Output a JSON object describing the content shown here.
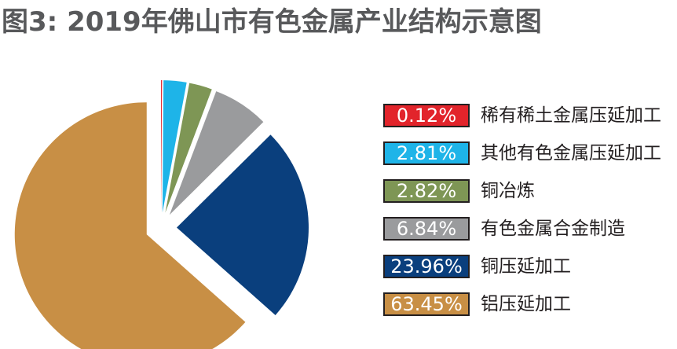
{
  "title": "图3: 2019年佛山市有色金属产业结构示意图",
  "chart_data": {
    "type": "pie",
    "title": "图3: 2019年佛山市有色金属产业结构示意图",
    "legend_position": "right",
    "slices": [
      {
        "label": "稀有稀土金属压延加工",
        "value": 0.12,
        "display": "0.12%",
        "color": "#e2242b"
      },
      {
        "label": "其他有色金属压延加工",
        "value": 2.81,
        "display": "2.81%",
        "color": "#1eb4e8"
      },
      {
        "label": "铜冶炼",
        "value": 2.82,
        "display": "2.82%",
        "color": "#7e9655"
      },
      {
        "label": "有色金属合金制造",
        "value": 6.84,
        "display": "6.84%",
        "color": "#9a9b9d"
      },
      {
        "label": "铜压延加工",
        "value": 23.96,
        "display": "23.96%",
        "color": "#0a3f7d"
      },
      {
        "label": "铝压延加工",
        "value": 63.45,
        "display": "63.45%",
        "color": "#c88f45"
      }
    ]
  }
}
